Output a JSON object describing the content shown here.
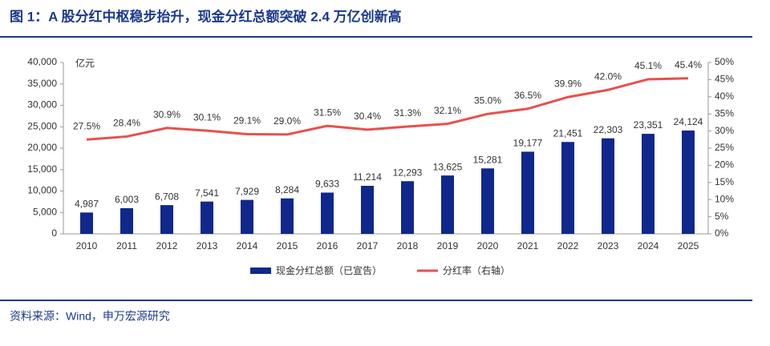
{
  "chart_data": {
    "type": "bar-line",
    "title": "图 1：A 股分红中枢稳步抬升，现金分红总额突破 2.4 万亿创新高",
    "y_label": "亿元",
    "source": "资料来源：Wind，申万宏源研究",
    "categories": [
      "2010",
      "2011",
      "2012",
      "2013",
      "2014",
      "2015",
      "2016",
      "2017",
      "2018",
      "2019",
      "2020",
      "2021",
      "2022",
      "2023",
      "2024",
      "2025"
    ],
    "series": [
      {
        "name": "现金分红总额（已宣告）",
        "type": "bar",
        "color": "#10288c",
        "values": [
          4987,
          6003,
          6708,
          7541,
          7929,
          8284,
          9633,
          11214,
          12293,
          13625,
          15281,
          19177,
          21451,
          22303,
          23351,
          24124
        ],
        "value_labels": [
          "4,987",
          "6,003",
          "6,708",
          "7,541",
          "7,929",
          "8,284",
          "9,633",
          "11,214",
          "12,293",
          "13,625",
          "15,281",
          "19,177",
          "21,451",
          "22,303",
          "23,351",
          "24,124"
        ]
      },
      {
        "name": "分红率（右轴）",
        "type": "line",
        "axis": "y2",
        "color": "#e8504e",
        "values": [
          27.5,
          28.4,
          30.9,
          30.1,
          29.1,
          29.0,
          31.5,
          30.4,
          31.3,
          32.1,
          35.0,
          36.5,
          39.9,
          42.0,
          45.1,
          45.4
        ],
        "value_labels": [
          "27.5%",
          "28.4%",
          "30.9%",
          "30.1%",
          "29.1%",
          "29.0%",
          "31.5%",
          "30.4%",
          "31.3%",
          "32.1%",
          "35.0%",
          "36.5%",
          "39.9%",
          "42.0%",
          "45.1%",
          "45.4%"
        ]
      }
    ],
    "ylim": [
      0,
      40000
    ],
    "yticks": [
      0,
      {
        "value": 5000,
        "label": "5,000"
      },
      {
        "value": 10000,
        "label": "10,000"
      },
      {
        "value": 15000,
        "label": "15,000"
      },
      {
        "value": 20000,
        "label": "20,000"
      },
      {
        "value": 25000,
        "label": "25,000"
      },
      {
        "value": 30000,
        "label": "30,000"
      },
      {
        "value": 35000,
        "label": "35,000"
      },
      {
        "value": 40000,
        "label": "40,000"
      }
    ],
    "y2lim": [
      0,
      50
    ],
    "y2ticks": [
      {
        "value": 0,
        "label": "0%"
      },
      {
        "value": 5,
        "label": "5%"
      },
      {
        "value": 10,
        "label": "10%"
      },
      {
        "value": 15,
        "label": "15%"
      },
      {
        "value": 20,
        "label": "20%"
      },
      {
        "value": 25,
        "label": "25%"
      },
      {
        "value": 30,
        "label": "30%"
      },
      {
        "value": 35,
        "label": "35%"
      },
      {
        "value": 40,
        "label": "40%"
      },
      {
        "value": 45,
        "label": "45%"
      },
      {
        "value": 50,
        "label": "50%"
      }
    ],
    "legend": "bottom"
  }
}
